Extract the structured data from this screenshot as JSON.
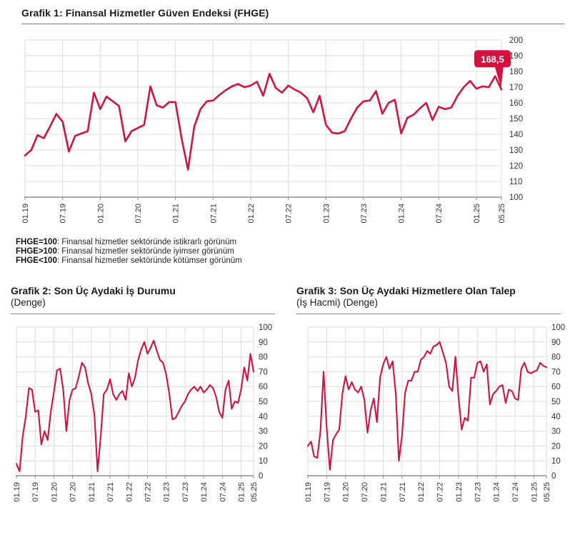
{
  "page": {
    "title": "Grafik 1: Finansal Hizmetler Güven Endeksi (FHGE)",
    "footnotes": [
      {
        "term": "FHGE=100",
        "text": ": Finansal hizmetler sektöründe istikrarlı görünüm"
      },
      {
        "term": "FHGE>100",
        "text": ": Finansal hizmetler sektöründe iyimser görünüm"
      },
      {
        "term": "FHGE<100",
        "text": ": Finansal hizmetler sektöründe kötümser görünüm"
      }
    ],
    "chart2_title": "Grafik 2: Son Üç Aydaki İş Durumu",
    "chart2_subtitle": "(Denge)",
    "chart3_title": "Grafik 3: Son Üç Aydaki Hizmetlere Olan Talep",
    "chart3_subtitle": "(İş Hacmi) (Denge)",
    "accent_color": "#d3123f"
  },
  "chart_data": [
    {
      "id": "fhge",
      "type": "line",
      "title": "Grafik 1: Finansal Hizmetler Güven Endeksi (FHGE)",
      "frequency": "monthly",
      "x_start": "01.19",
      "x_end": "05.25",
      "x_tick_labels": [
        "01.19",
        "07.19",
        "01.20",
        "07.20",
        "01.21",
        "07.21",
        "01.22",
        "07.22",
        "01.23",
        "07.23",
        "01.24",
        "07.24",
        "01.25",
        "05.25"
      ],
      "x_tick_indices": [
        0,
        6,
        12,
        18,
        24,
        30,
        36,
        42,
        48,
        54,
        60,
        66,
        72,
        76
      ],
      "ylim": [
        100,
        200
      ],
      "ytick": 10,
      "grid": true,
      "legend": "none",
      "line_color": "#d3123f",
      "callout": {
        "label": "168,5",
        "value": 168.5
      },
      "series": [
        {
          "name": "FHGE",
          "values": [
            126.5,
            130,
            139.5,
            137.5,
            145,
            153,
            148,
            129,
            139,
            140.5,
            142,
            166.5,
            156,
            164,
            161,
            158,
            135.5,
            142,
            144,
            146,
            170.5,
            158.5,
            157,
            160.5,
            160.5,
            137,
            117.5,
            145,
            156,
            161,
            161.5,
            165,
            168,
            170.5,
            172,
            170,
            171,
            173.5,
            164.5,
            178.5,
            169.5,
            166.5,
            171,
            168.5,
            166.5,
            163,
            154,
            164.5,
            146,
            141,
            140.5,
            142,
            150,
            157,
            161,
            161.5,
            167.5,
            153,
            160,
            162,
            140.5,
            150.5,
            152.5,
            156.5,
            160,
            149,
            157.5,
            156,
            157,
            164.5,
            170,
            174,
            169,
            170.5,
            170,
            177,
            168.5
          ]
        }
      ]
    },
    {
      "id": "is-durumu",
      "type": "line",
      "title": "Grafik 2: Son Üç Aydaki İş Durumu (Denge)",
      "frequency": "monthly",
      "x_start": "01.19",
      "x_end": "05.25",
      "x_tick_labels": [
        "01.19",
        "07.19",
        "01.20",
        "07.20",
        "01.21",
        "07.21",
        "01.22",
        "07.22",
        "01.23",
        "07.23",
        "01.24",
        "07.24",
        "01.25",
        "05.25"
      ],
      "x_tick_indices": [
        0,
        6,
        12,
        18,
        24,
        30,
        36,
        42,
        48,
        54,
        60,
        66,
        72,
        76
      ],
      "ylim": [
        0,
        100
      ],
      "ytick": 10,
      "grid": true,
      "legend": "none",
      "line_color": "#d3123f",
      "callout": null,
      "series": [
        {
          "name": "İş Durumu (Denge)",
          "values": [
            8,
            3,
            26,
            40,
            59,
            58,
            43,
            44,
            21,
            30,
            24,
            43,
            56,
            71,
            72,
            58,
            30,
            51,
            58,
            59,
            67,
            76,
            73,
            62,
            55,
            41,
            3,
            26,
            55,
            58,
            65,
            55,
            51,
            55,
            57,
            51,
            69,
            60,
            66,
            78,
            85,
            90,
            82,
            86,
            91,
            84,
            78,
            76,
            68,
            55,
            38,
            39,
            43,
            47,
            50,
            55,
            58,
            60,
            57,
            60,
            56,
            58,
            61,
            59,
            53,
            43,
            39,
            58,
            64,
            45,
            50,
            49,
            58,
            73,
            64,
            82,
            70
          ]
        }
      ]
    },
    {
      "id": "talep",
      "type": "line",
      "title": "Grafik 3: Son Üç Aydaki Hizmetlere Olan Talep (İş Hacmi) (Denge)",
      "frequency": "monthly",
      "x_start": "01.19",
      "x_end": "05.25",
      "x_tick_labels": [
        "01.19",
        "07.19",
        "01.20",
        "07.20",
        "01.21",
        "07.21",
        "01.22",
        "07.22",
        "01.23",
        "07.23",
        "01.24",
        "07.24",
        "01.25",
        "05.25"
      ],
      "x_tick_indices": [
        0,
        6,
        12,
        18,
        24,
        30,
        36,
        42,
        48,
        54,
        60,
        66,
        72,
        76
      ],
      "ylim": [
        0,
        100
      ],
      "ytick": 10,
      "grid": true,
      "legend": "none",
      "line_color": "#d3123f",
      "callout": null,
      "series": [
        {
          "name": "Hizmetlere Olan Talep (Denge)",
          "values": [
            20,
            23,
            13,
            12,
            30,
            70,
            32,
            4,
            24,
            28,
            31,
            55,
            67,
            58,
            63,
            58,
            56,
            60,
            51,
            29,
            44,
            52,
            36,
            66,
            75,
            80,
            72,
            77,
            55,
            10,
            27,
            56,
            64,
            64,
            70,
            70,
            78,
            80,
            84,
            82,
            87,
            88,
            90,
            83,
            76,
            60,
            57,
            80,
            53,
            31,
            39,
            37,
            66,
            66,
            76,
            77,
            70,
            75,
            48,
            55,
            57,
            60,
            61,
            49,
            58,
            57,
            52,
            51,
            72,
            76,
            70,
            69,
            70,
            71,
            76,
            74,
            73
          ]
        }
      ]
    }
  ]
}
